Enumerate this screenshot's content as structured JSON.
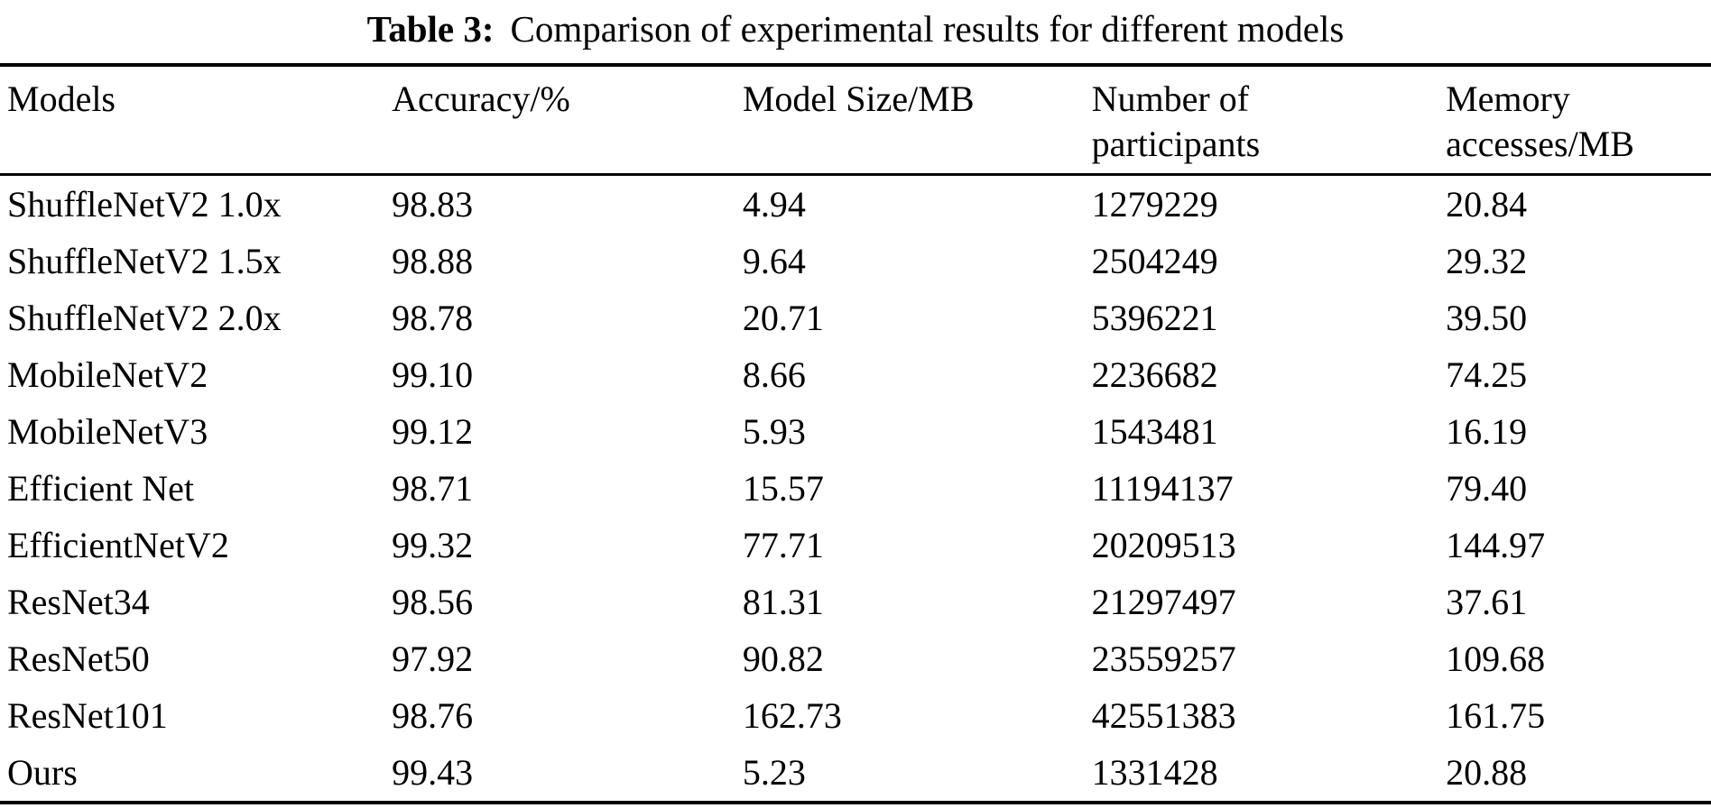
{
  "caption": {
    "label": "Table 3:",
    "text": "Comparison of experimental results for different models"
  },
  "table": {
    "columns": [
      "Models",
      "Accuracy/%",
      "Model Size/MB",
      "Number of\nparticipants",
      "Memory\naccesses/MB"
    ],
    "rows": [
      [
        "ShuffleNetV2 1.0x",
        "98.83",
        "4.94",
        "1279229",
        "20.84"
      ],
      [
        "ShuffleNetV2 1.5x",
        "98.88",
        "9.64",
        "2504249",
        "29.32"
      ],
      [
        "ShuffleNetV2 2.0x",
        "98.78",
        "20.71",
        "5396221",
        "39.50"
      ],
      [
        "MobileNetV2",
        "99.10",
        "8.66",
        "2236682",
        "74.25"
      ],
      [
        "MobileNetV3",
        "99.12",
        "5.93",
        "1543481",
        "16.19"
      ],
      [
        "Efficient Net",
        "98.71",
        "15.57",
        "11194137",
        "79.40"
      ],
      [
        "EfficientNetV2",
        "99.32",
        "77.71",
        "20209513",
        "144.97"
      ],
      [
        "ResNet34",
        "98.56",
        "81.31",
        "21297497",
        "37.61"
      ],
      [
        "ResNet50",
        "97.92",
        "90.82",
        "23559257",
        "109.68"
      ],
      [
        "ResNet101",
        "98.76",
        "162.73",
        "42551383",
        "161.75"
      ],
      [
        "Ours",
        "99.43",
        "5.23",
        "1331428",
        "20.88"
      ]
    ]
  },
  "colors": {
    "text": "#000000",
    "background": "#ffffff",
    "rule": "#000000"
  }
}
